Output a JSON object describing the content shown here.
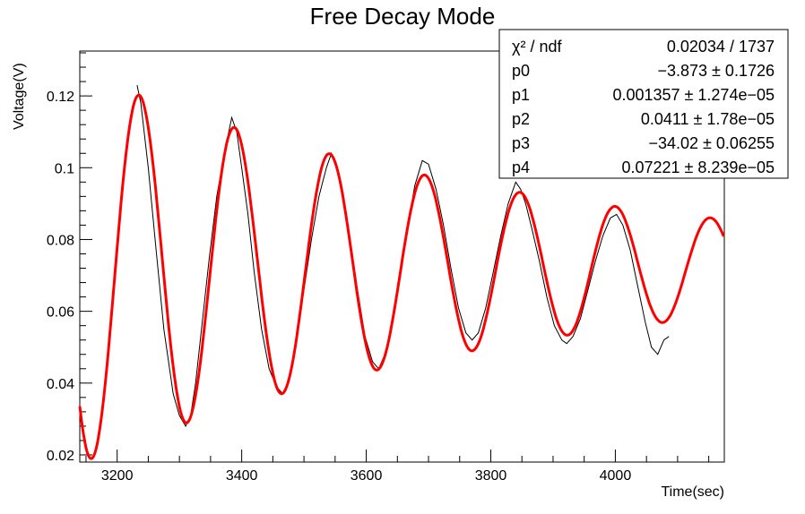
{
  "chart_data": {
    "type": "line",
    "title": "Free Decay Mode",
    "xlabel": "Time(sec)",
    "ylabel": "Voltage(V)",
    "xlim": [
      3140,
      4175
    ],
    "ylim": [
      0.018,
      0.1325
    ],
    "x_ticks": [
      3200,
      3400,
      3600,
      3800,
      4000
    ],
    "x_tick_labels": [
      "3200",
      "3400",
      "3600",
      "3800",
      "4000"
    ],
    "y_ticks": [
      0.02,
      0.04,
      0.06,
      0.08,
      0.1,
      0.12
    ],
    "y_tick_labels": [
      "0.02",
      "0.04",
      "0.06",
      "0.08",
      "0.1",
      "0.12"
    ],
    "grid": false,
    "legend": "none",
    "series": [
      {
        "kind": "measured",
        "color": "#000000",
        "x": [
          3232,
          3238,
          3250,
          3262,
          3275,
          3290,
          3300,
          3310,
          3318,
          3326,
          3336,
          3348,
          3360,
          3372,
          3384,
          3392,
          3400,
          3410,
          3420,
          3432,
          3444,
          3456,
          3466,
          3476,
          3488,
          3500,
          3512,
          3524,
          3536,
          3544,
          3552,
          3562,
          3574,
          3586,
          3598,
          3610,
          3620,
          3630,
          3642,
          3654,
          3666,
          3678,
          3690,
          3700,
          3712,
          3724,
          3736,
          3748,
          3760,
          3770,
          3780,
          3792,
          3804,
          3816,
          3828,
          3840,
          3848,
          3856,
          3866,
          3878,
          3890,
          3902,
          3914,
          3922,
          3932,
          3944,
          3956,
          3968,
          3980,
          3992,
          4002,
          4012,
          4024,
          4036,
          4048,
          4058,
          4068,
          4078,
          4086
        ],
        "y": [
          0.123,
          0.118,
          0.1,
          0.078,
          0.055,
          0.037,
          0.031,
          0.028,
          0.031,
          0.04,
          0.056,
          0.075,
          0.092,
          0.104,
          0.114,
          0.11,
          0.1,
          0.087,
          0.071,
          0.055,
          0.044,
          0.039,
          0.037,
          0.041,
          0.052,
          0.066,
          0.08,
          0.092,
          0.1,
          0.104,
          0.101,
          0.093,
          0.08,
          0.066,
          0.053,
          0.046,
          0.044,
          0.048,
          0.057,
          0.07,
          0.083,
          0.095,
          0.102,
          0.101,
          0.094,
          0.084,
          0.072,
          0.061,
          0.054,
          0.052,
          0.054,
          0.061,
          0.071,
          0.081,
          0.09,
          0.096,
          0.094,
          0.09,
          0.083,
          0.074,
          0.064,
          0.056,
          0.052,
          0.051,
          0.053,
          0.058,
          0.066,
          0.074,
          0.081,
          0.086,
          0.087,
          0.084,
          0.077,
          0.067,
          0.057,
          0.05,
          0.048,
          0.052,
          0.053
        ]
      },
      {
        "kind": "fit",
        "color": "#ff0000",
        "function": "p0*exp(-p1*x)*sin(p2*x+p3)+p4",
        "x_range": [
          3140,
          4175
        ]
      }
    ],
    "stats_box": {
      "rows": [
        {
          "label": "χ² / ndf",
          "value": "0.02034 / 1737"
        },
        {
          "label": "p0",
          "value": "−3.873 ± 0.1726"
        },
        {
          "label": "p1",
          "value": "0.001357 ± 1.274e−05"
        },
        {
          "label": "p2",
          "value": "0.0411 ± 1.78e−05"
        },
        {
          "label": "p3",
          "value": "−34.02 ± 0.06255"
        },
        {
          "label": "p4",
          "value": "0.07221 ± 8.239e−05"
        }
      ],
      "params": {
        "p0": -3.873,
        "p1": 0.001357,
        "p2": 0.0411,
        "p3": -34.02,
        "p4": 0.07221
      }
    }
  }
}
